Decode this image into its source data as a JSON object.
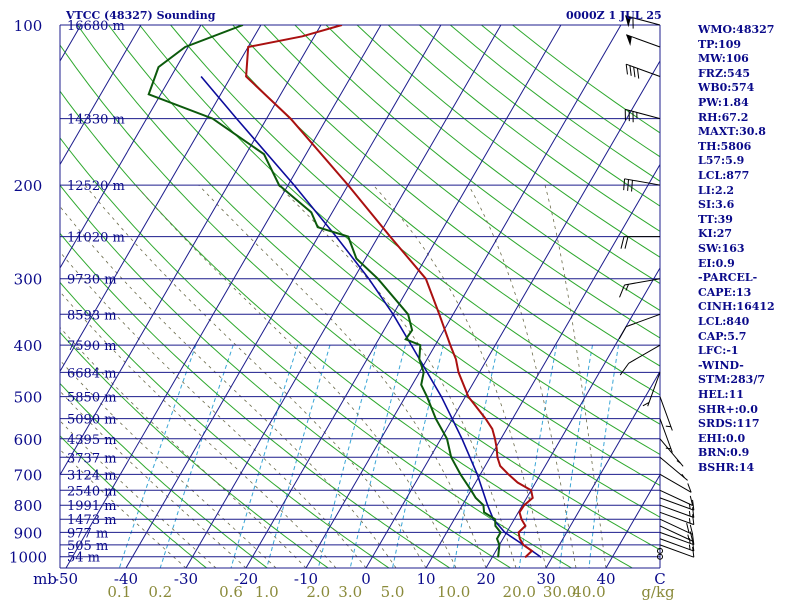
{
  "header": {
    "title": "VTCC (48327) Sounding",
    "time": "0000Z  1 JUL 25"
  },
  "indices": [
    "WMO:48327",
    "TP:109",
    "MW:106",
    "FRZ:545",
    "WB0:574",
    "PW:1.84",
    "RH:67.2",
    "MAXT:30.8",
    "TH:5806",
    "L57:5.9",
    "LCL:877",
    "LI:2.2",
    "SI:3.6",
    "TT:39",
    "KI:27",
    "SW:163",
    "EI:0.9",
    "-PARCEL-",
    "CAPE:13",
    "CINH:16412",
    "LCL:840",
    "CAP:5.7",
    "LFC:-1",
    "-WIND-",
    "STM:283/7",
    "HEL:11",
    "SHR+:0.0",
    "SRDS:117",
    "EHI:0.0",
    "BRN:0.9",
    "BSHR:14"
  ],
  "colors": {
    "isobar": "#1c1c8c",
    "isotherm": "#1c1c8c",
    "dry_adiabat": "#2ea82e",
    "moist_adiabat": "#6b6b4a",
    "mixing_ratio": "#3aa6d6",
    "temperature": "#aa1010",
    "dewpoint": "#0c5a0c",
    "parcel": "#0c0c9c",
    "axis_text": "#0a0a8a",
    "mixing_text": "#8a8a3a"
  },
  "chart_data": {
    "type": "skew-t log-p sounding",
    "title": "VTCC (48327) Sounding",
    "valid_time": "0000Z  1 JUL 25",
    "pressure_axis": {
      "label": "mb",
      "ticks": [
        100,
        200,
        300,
        400,
        500,
        600,
        700,
        800,
        900,
        1000
      ],
      "range": [
        1050,
        100
      ]
    },
    "temperature_axis": {
      "ticks": [
        -50,
        -40,
        -30,
        -20,
        -10,
        0,
        10,
        20,
        30,
        40
      ],
      "range": [
        -50,
        50
      ]
    },
    "mixing_ratio_labels": [
      "0.1",
      "0.2",
      "0.6",
      "1.0",
      "2.0",
      "3.0",
      "5.0",
      "10.0",
      "20.0",
      "30.0",
      "40.0"
    ],
    "mixing_ratio_values": [
      0.1,
      0.2,
      0.6,
      1.0,
      2.0,
      3.0,
      5.0,
      10.0,
      20.0,
      30.0,
      40.0
    ],
    "mixing_ratio_unit": "g/kg",
    "height_labels": [
      {
        "p": 100,
        "label": "16680 m"
      },
      {
        "p": 150,
        "label": "14330 m"
      },
      {
        "p": 200,
        "label": "12520 m"
      },
      {
        "p": 250,
        "label": "11020 m"
      },
      {
        "p": 300,
        "label": "9730 m"
      },
      {
        "p": 350,
        "label": "8593 m"
      },
      {
        "p": 400,
        "label": "7590 m"
      },
      {
        "p": 450,
        "label": "6684 m"
      },
      {
        "p": 500,
        "label": "5850 m"
      },
      {
        "p": 550,
        "label": "5090 m"
      },
      {
        "p": 600,
        "label": "4395 m"
      },
      {
        "p": 650,
        "label": "3737 m"
      },
      {
        "p": 700,
        "label": "3124 m"
      },
      {
        "p": 750,
        "label": "2540 m"
      },
      {
        "p": 800,
        "label": "1991 m"
      },
      {
        "p": 850,
        "label": "1473 m"
      },
      {
        "p": 900,
        "label": "977 m"
      },
      {
        "p": 950,
        "label": "505 m"
      },
      {
        "p": 1000,
        "label": "54 m"
      }
    ],
    "temperature": [
      {
        "p": 1003,
        "t": 25.5
      },
      {
        "p": 975,
        "t": 26.0
      },
      {
        "p": 950,
        "t": 24.0
      },
      {
        "p": 925,
        "t": 22.8
      },
      {
        "p": 900,
        "t": 22.0
      },
      {
        "p": 875,
        "t": 22.5
      },
      {
        "p": 850,
        "t": 21.2
      },
      {
        "p": 825,
        "t": 20.2
      },
      {
        "p": 800,
        "t": 20.3
      },
      {
        "p": 775,
        "t": 21.0
      },
      {
        "p": 750,
        "t": 20.0
      },
      {
        "p": 725,
        "t": 17.0
      },
      {
        "p": 700,
        "t": 14.7
      },
      {
        "p": 675,
        "t": 12.5
      },
      {
        "p": 650,
        "t": 11.2
      },
      {
        "p": 625,
        "t": 10.2
      },
      {
        "p": 600,
        "t": 9.0
      },
      {
        "p": 575,
        "t": 7.6
      },
      {
        "p": 550,
        "t": 5.5
      },
      {
        "p": 500,
        "t": 0.5
      },
      {
        "p": 450,
        "t": -3.5
      },
      {
        "p": 425,
        "t": -5.2
      },
      {
        "p": 400,
        "t": -7.5
      },
      {
        "p": 350,
        "t": -12.3
      },
      {
        "p": 300,
        "t": -18.0
      },
      {
        "p": 250,
        "t": -28.0
      },
      {
        "p": 200,
        "t": -40.0
      },
      {
        "p": 150,
        "t": -56.0
      },
      {
        "p": 125,
        "t": -67.5
      },
      {
        "p": 110,
        "t": -70.0
      },
      {
        "p": 105,
        "t": -62.0
      },
      {
        "p": 100,
        "t": -56.5
      }
    ],
    "dewpoint": [
      {
        "p": 1003,
        "t": 21.0
      },
      {
        "p": 950,
        "t": 20.0
      },
      {
        "p": 925,
        "t": 19.0
      },
      {
        "p": 900,
        "t": 19.0
      },
      {
        "p": 875,
        "t": 17.5
      },
      {
        "p": 850,
        "t": 16.8
      },
      {
        "p": 825,
        "t": 14.3
      },
      {
        "p": 800,
        "t": 13.5
      },
      {
        "p": 775,
        "t": 11.5
      },
      {
        "p": 750,
        "t": 10.0
      },
      {
        "p": 700,
        "t": 6.7
      },
      {
        "p": 650,
        "t": 3.5
      },
      {
        "p": 600,
        "t": 1.0
      },
      {
        "p": 550,
        "t": -2.8
      },
      {
        "p": 500,
        "t": -6.4
      },
      {
        "p": 475,
        "t": -8.5
      },
      {
        "p": 450,
        "t": -9.3
      },
      {
        "p": 425,
        "t": -11.3
      },
      {
        "p": 400,
        "t": -12.5
      },
      {
        "p": 390,
        "t": -15.5
      },
      {
        "p": 375,
        "t": -15.3
      },
      {
        "p": 350,
        "t": -17.5
      },
      {
        "p": 300,
        "t": -26.0
      },
      {
        "p": 275,
        "t": -31.5
      },
      {
        "p": 250,
        "t": -35.0
      },
      {
        "p": 240,
        "t": -41.0
      },
      {
        "p": 225,
        "t": -43.5
      },
      {
        "p": 200,
        "t": -51.5
      },
      {
        "p": 175,
        "t": -57.0
      },
      {
        "p": 150,
        "t": -69.0
      },
      {
        "p": 135,
        "t": -82.0
      },
      {
        "p": 120,
        "t": -83.0
      },
      {
        "p": 110,
        "t": -80.5
      },
      {
        "p": 100,
        "t": -73.0
      }
    ],
    "parcel": [
      {
        "p": 1003,
        "t": 28.2
      },
      {
        "p": 950,
        "t": 24.0
      },
      {
        "p": 900,
        "t": 19.7
      },
      {
        "p": 850,
        "t": 16.5
      },
      {
        "p": 800,
        "t": 14.2
      },
      {
        "p": 700,
        "t": 9.5
      },
      {
        "p": 600,
        "t": 3.5
      },
      {
        "p": 500,
        "t": -4.0
      },
      {
        "p": 400,
        "t": -14.0
      },
      {
        "p": 350,
        "t": -20.0
      },
      {
        "p": 300,
        "t": -27.5
      },
      {
        "p": 250,
        "t": -37.0
      },
      {
        "p": 200,
        "t": -49.0
      },
      {
        "p": 150,
        "t": -65.0
      },
      {
        "p": 125,
        "t": -75.0
      }
    ],
    "wind_barbs": [
      {
        "p": 1000,
        "dir": 270,
        "spd": 0
      },
      {
        "p": 975,
        "dir": 270,
        "spd": 0
      },
      {
        "p": 950,
        "dir": 250,
        "spd": 10
      },
      {
        "p": 925,
        "dir": 250,
        "spd": 15
      },
      {
        "p": 900,
        "dir": 250,
        "spd": 15
      },
      {
        "p": 875,
        "dir": 245,
        "spd": 15
      },
      {
        "p": 850,
        "dir": 245,
        "spd": 20
      },
      {
        "p": 825,
        "dir": 250,
        "spd": 15
      },
      {
        "p": 800,
        "dir": 250,
        "spd": 15
      },
      {
        "p": 775,
        "dir": 250,
        "spd": 15
      },
      {
        "p": 750,
        "dir": 245,
        "spd": 10
      },
      {
        "p": 700,
        "dir": 240,
        "spd": 10
      },
      {
        "p": 650,
        "dir": 230,
        "spd": 5
      },
      {
        "p": 600,
        "dir": 220,
        "spd": 5
      },
      {
        "p": 550,
        "dir": 200,
        "spd": 5
      },
      {
        "p": 500,
        "dir": 200,
        "spd": 5
      },
      {
        "p": 450,
        "dir": 160,
        "spd": 5
      },
      {
        "p": 400,
        "dir": 120,
        "spd": 10
      },
      {
        "p": 350,
        "dir": 110,
        "spd": 10
      },
      {
        "p": 300,
        "dir": 100,
        "spd": 15
      },
      {
        "p": 250,
        "dir": 90,
        "spd": 20
      },
      {
        "p": 200,
        "dir": 80,
        "spd": 30
      },
      {
        "p": 150,
        "dir": 75,
        "spd": 35
      },
      {
        "p": 125,
        "dir": 70,
        "spd": 40
      },
      {
        "p": 110,
        "dir": 70,
        "spd": 50
      },
      {
        "p": 100,
        "dir": 75,
        "spd": 60
      }
    ]
  }
}
